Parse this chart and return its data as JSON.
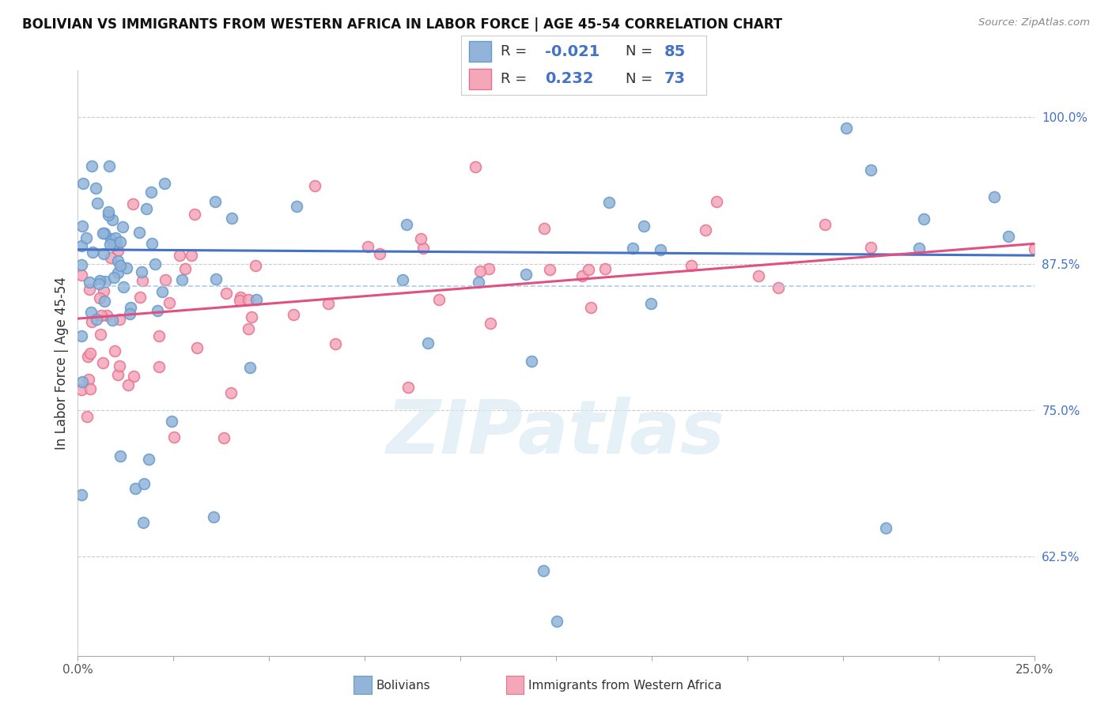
{
  "title": "BOLIVIAN VS IMMIGRANTS FROM WESTERN AFRICA IN LABOR FORCE | AGE 45-54 CORRELATION CHART",
  "source": "Source: ZipAtlas.com",
  "ylabel": "In Labor Force | Age 45-54",
  "watermark": "ZIPatlas",
  "blue_label": "Bolivians",
  "pink_label": "Immigrants from Western Africa",
  "blue_R": -0.021,
  "blue_N": 85,
  "pink_R": 0.232,
  "pink_N": 73,
  "blue_color": "#92b4d8",
  "pink_color": "#f4a7b9",
  "blue_edge_color": "#6699cc",
  "pink_edge_color": "#e87090",
  "blue_line_color": "#4472c4",
  "pink_line_color": "#e05080",
  "blue_dash_color": "#aaccee",
  "xmin": 0.0,
  "xmax": 0.25,
  "ymin": 0.54,
  "ymax": 1.04,
  "yticks": [
    0.625,
    0.75,
    0.875,
    1.0
  ],
  "ytick_labels": [
    "62.5%",
    "75.0%",
    "87.5%",
    "100.0%"
  ],
  "title_fontsize": 12,
  "axis_fontsize": 11,
  "marker_size": 100
}
